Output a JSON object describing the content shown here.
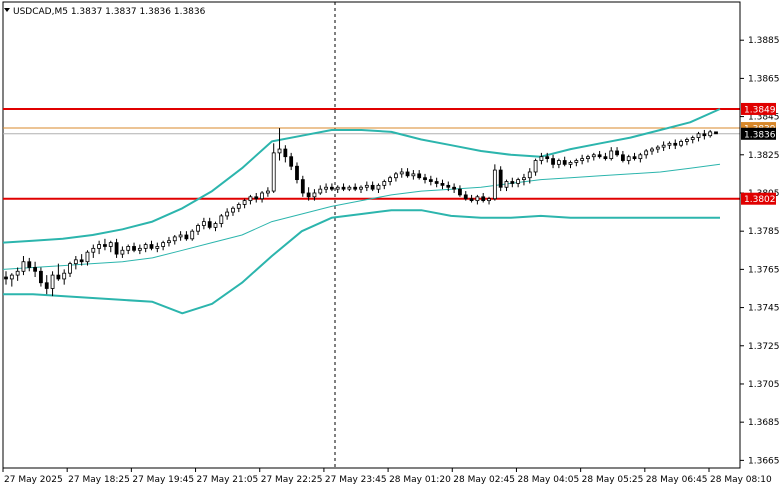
{
  "window": {
    "symbol_line": "USDCAD,M5  1.3837 1.3837 1.3836 1.3836",
    "dropdown_icon": "triangle-down-icon"
  },
  "chart_data": {
    "type": "candlestick",
    "title": "USDCAD,M5  1.3837 1.3837 1.3836 1.3836",
    "ylim": [
      1.3661,
      1.3905
    ],
    "y_ticks": [
      "1.3885",
      "1.3865",
      "1.3845",
      "1.3825",
      "1.3805",
      "1.3785",
      "1.3765",
      "1.3745",
      "1.3725",
      "1.3705",
      "1.3685",
      "1.3665"
    ],
    "y_tick_values": [
      1.3885,
      1.3865,
      1.3845,
      1.3825,
      1.3805,
      1.3785,
      1.3765,
      1.3745,
      1.3725,
      1.3705,
      1.3685,
      1.3665
    ],
    "x_ticks": [
      "27 May 2025",
      "27 May 18:25",
      "27 May 19:45",
      "27 May 21:05",
      "27 May 22:25",
      "27 May 23:45",
      "28 May 01:20",
      "28 May 02:45",
      "28 May 04:05",
      "28 May 05:25",
      "28 May 06:45",
      "28 May 08:10"
    ],
    "candles": [
      [
        1.3761,
        1.3764,
        1.3757,
        1.376
      ],
      [
        1.376,
        1.3763,
        1.3756,
        1.3762
      ],
      [
        1.3762,
        1.3766,
        1.3759,
        1.3764
      ],
      [
        1.3764,
        1.3772,
        1.3762,
        1.3769
      ],
      [
        1.3769,
        1.3771,
        1.3764,
        1.3766
      ],
      [
        1.3766,
        1.3769,
        1.3761,
        1.3764
      ],
      [
        1.3764,
        1.3766,
        1.3756,
        1.3758
      ],
      [
        1.3758,
        1.3762,
        1.3752,
        1.3755
      ],
      [
        1.3755,
        1.3764,
        1.3751,
        1.3762
      ],
      [
        1.3762,
        1.3768,
        1.3759,
        1.376
      ],
      [
        1.376,
        1.3765,
        1.3757,
        1.3763
      ],
      [
        1.3763,
        1.3769,
        1.3761,
        1.3768
      ],
      [
        1.3768,
        1.3772,
        1.3765,
        1.377
      ],
      [
        1.377,
        1.3773,
        1.3767,
        1.3769
      ],
      [
        1.3769,
        1.3775,
        1.3767,
        1.3774
      ],
      [
        1.3774,
        1.3778,
        1.3771,
        1.3776
      ],
      [
        1.3776,
        1.378,
        1.3773,
        1.3778
      ],
      [
        1.3778,
        1.3781,
        1.3775,
        1.3777
      ],
      [
        1.3777,
        1.378,
        1.3774,
        1.3779
      ],
      [
        1.3779,
        1.3781,
        1.3771,
        1.3773
      ],
      [
        1.3773,
        1.3777,
        1.3771,
        1.3775
      ],
      [
        1.3775,
        1.3778,
        1.3773,
        1.3777
      ],
      [
        1.3777,
        1.3779,
        1.3774,
        1.3775
      ],
      [
        1.3775,
        1.3778,
        1.3773,
        1.3776
      ],
      [
        1.3776,
        1.3779,
        1.3774,
        1.3778
      ],
      [
        1.3778,
        1.378,
        1.3775,
        1.3776
      ],
      [
        1.3776,
        1.3779,
        1.3774,
        1.3777
      ],
      [
        1.3777,
        1.378,
        1.3775,
        1.3779
      ],
      [
        1.3779,
        1.3782,
        1.3777,
        1.378
      ],
      [
        1.378,
        1.3783,
        1.3778,
        1.3782
      ],
      [
        1.3782,
        1.3785,
        1.378,
        1.3783
      ],
      [
        1.3783,
        1.3785,
        1.378,
        1.3781
      ],
      [
        1.3781,
        1.3786,
        1.378,
        1.3785
      ],
      [
        1.3785,
        1.3789,
        1.3783,
        1.3788
      ],
      [
        1.3788,
        1.3792,
        1.3786,
        1.379
      ],
      [
        1.379,
        1.3792,
        1.3786,
        1.3787
      ],
      [
        1.3787,
        1.379,
        1.3785,
        1.3789
      ],
      [
        1.3789,
        1.3794,
        1.3787,
        1.3793
      ],
      [
        1.3793,
        1.3797,
        1.3791,
        1.3795
      ],
      [
        1.3795,
        1.3798,
        1.3793,
        1.3797
      ],
      [
        1.3797,
        1.38,
        1.3795,
        1.3799
      ],
      [
        1.3799,
        1.3802,
        1.3797,
        1.3801
      ],
      [
        1.3801,
        1.3804,
        1.3799,
        1.3803
      ],
      [
        1.3803,
        1.3805,
        1.38,
        1.3802
      ],
      [
        1.3802,
        1.3806,
        1.38,
        1.3805
      ],
      [
        1.3805,
        1.3808,
        1.3803,
        1.3806
      ],
      [
        1.3806,
        1.3831,
        1.3805,
        1.3826
      ],
      [
        1.3826,
        1.3839,
        1.3822,
        1.3828
      ],
      [
        1.3828,
        1.383,
        1.3821,
        1.3824
      ],
      [
        1.3824,
        1.3826,
        1.3817,
        1.3819
      ],
      [
        1.3819,
        1.3821,
        1.381,
        1.3812
      ],
      [
        1.3812,
        1.3814,
        1.3803,
        1.3805
      ],
      [
        1.3805,
        1.3808,
        1.3801,
        1.3803
      ],
      [
        1.3803,
        1.3807,
        1.3801,
        1.3805
      ],
      [
        1.3805,
        1.3809,
        1.3804,
        1.3807
      ],
      [
        1.3807,
        1.381,
        1.3805,
        1.3808
      ],
      [
        1.3808,
        1.381,
        1.3806,
        1.3807
      ],
      [
        1.3807,
        1.3809,
        1.3805,
        1.3808
      ],
      [
        1.3808,
        1.381,
        1.3806,
        1.3807
      ],
      [
        1.3807,
        1.3809,
        1.3806,
        1.3808
      ],
      [
        1.3808,
        1.381,
        1.3806,
        1.3807
      ],
      [
        1.3807,
        1.3809,
        1.3805,
        1.3808
      ],
      [
        1.3808,
        1.3811,
        1.3806,
        1.3809
      ],
      [
        1.3809,
        1.3811,
        1.3806,
        1.3807
      ],
      [
        1.3807,
        1.381,
        1.3805,
        1.3809
      ],
      [
        1.3809,
        1.3812,
        1.3807,
        1.3811
      ],
      [
        1.3811,
        1.3814,
        1.3809,
        1.3813
      ],
      [
        1.3813,
        1.3816,
        1.3811,
        1.3815
      ],
      [
        1.3815,
        1.3818,
        1.3813,
        1.3816
      ],
      [
        1.3816,
        1.3818,
        1.3813,
        1.3814
      ],
      [
        1.3814,
        1.3817,
        1.3812,
        1.3815
      ],
      [
        1.3815,
        1.3817,
        1.3812,
        1.3813
      ],
      [
        1.3813,
        1.3815,
        1.381,
        1.3812
      ],
      [
        1.3812,
        1.3814,
        1.3809,
        1.3811
      ],
      [
        1.3811,
        1.3813,
        1.3808,
        1.381
      ],
      [
        1.381,
        1.3812,
        1.3807,
        1.3809
      ],
      [
        1.3809,
        1.3811,
        1.3806,
        1.3808
      ],
      [
        1.3808,
        1.381,
        1.3805,
        1.3807
      ],
      [
        1.3807,
        1.3809,
        1.3803,
        1.3804
      ],
      [
        1.3804,
        1.3806,
        1.3801,
        1.3802
      ],
      [
        1.3802,
        1.3804,
        1.38,
        1.3801
      ],
      [
        1.3801,
        1.3804,
        1.3799,
        1.3803
      ],
      [
        1.3803,
        1.3805,
        1.38,
        1.3801
      ],
      [
        1.3801,
        1.3803,
        1.3799,
        1.3802
      ],
      [
        1.3802,
        1.382,
        1.3801,
        1.3817
      ],
      [
        1.3817,
        1.3819,
        1.3806,
        1.3808
      ],
      [
        1.3808,
        1.3812,
        1.3806,
        1.3811
      ],
      [
        1.3811,
        1.3813,
        1.3808,
        1.381
      ],
      [
        1.381,
        1.3813,
        1.3808,
        1.3812
      ],
      [
        1.3812,
        1.3815,
        1.3809,
        1.3813
      ],
      [
        1.3813,
        1.3818,
        1.381,
        1.3816
      ],
      [
        1.3816,
        1.3823,
        1.3814,
        1.3822
      ],
      [
        1.3822,
        1.3826,
        1.382,
        1.3824
      ],
      [
        1.3824,
        1.3826,
        1.3821,
        1.3823
      ],
      [
        1.3823,
        1.3825,
        1.3818,
        1.382
      ],
      [
        1.382,
        1.3823,
        1.3818,
        1.3822
      ],
      [
        1.3822,
        1.3824,
        1.3819,
        1.382
      ],
      [
        1.382,
        1.3822,
        1.3818,
        1.3821
      ],
      [
        1.3821,
        1.3823,
        1.3819,
        1.3822
      ],
      [
        1.3822,
        1.3825,
        1.382,
        1.3823
      ],
      [
        1.3823,
        1.3825,
        1.3821,
        1.3824
      ],
      [
        1.3824,
        1.3826,
        1.3822,
        1.3825
      ],
      [
        1.3825,
        1.3827,
        1.3823,
        1.3824
      ],
      [
        1.3824,
        1.3826,
        1.3822,
        1.3823
      ],
      [
        1.3823,
        1.3829,
        1.3822,
        1.3827
      ],
      [
        1.3827,
        1.3829,
        1.3824,
        1.3825
      ],
      [
        1.3825,
        1.3827,
        1.3821,
        1.3822
      ],
      [
        1.3822,
        1.3825,
        1.382,
        1.3824
      ],
      [
        1.3824,
        1.3826,
        1.3822,
        1.3823
      ],
      [
        1.3823,
        1.3826,
        1.3821,
        1.3825
      ],
      [
        1.3825,
        1.3828,
        1.3823,
        1.3827
      ],
      [
        1.3827,
        1.3829,
        1.3825,
        1.3828
      ],
      [
        1.3828,
        1.383,
        1.3826,
        1.3829
      ],
      [
        1.3829,
        1.3832,
        1.3827,
        1.383
      ],
      [
        1.383,
        1.3832,
        1.3828,
        1.3831
      ],
      [
        1.3831,
        1.3833,
        1.3828,
        1.383
      ],
      [
        1.383,
        1.3833,
        1.3829,
        1.3832
      ],
      [
        1.3832,
        1.3834,
        1.383,
        1.3833
      ],
      [
        1.3833,
        1.3835,
        1.3831,
        1.3834
      ],
      [
        1.3834,
        1.3837,
        1.3832,
        1.3836
      ],
      [
        1.3836,
        1.3838,
        1.3833,
        1.3835
      ],
      [
        1.3835,
        1.3838,
        1.3834,
        1.3837
      ],
      [
        1.3837,
        1.3837,
        1.3836,
        1.3836
      ]
    ],
    "bollinger_upper": [
      1.3779,
      1.378,
      1.3781,
      1.3783,
      1.3786,
      1.379,
      1.3797,
      1.3806,
      1.3818,
      1.3832,
      1.3835,
      1.3838,
      1.3838,
      1.3837,
      1.3833,
      1.383,
      1.3827,
      1.3825,
      1.3824,
      1.3828,
      1.3831,
      1.3834,
      1.3838,
      1.3842,
      1.3849
    ],
    "bollinger_middle": [
      1.3765,
      1.3766,
      1.3767,
      1.3768,
      1.3769,
      1.3771,
      1.3775,
      1.3779,
      1.3783,
      1.379,
      1.3794,
      1.3798,
      1.3801,
      1.3804,
      1.3806,
      1.3807,
      1.3808,
      1.381,
      1.3812,
      1.3813,
      1.3814,
      1.3815,
      1.3816,
      1.3818,
      1.382
    ],
    "bollinger_lower": [
      1.3752,
      1.3752,
      1.3751,
      1.375,
      1.3749,
      1.3748,
      1.3742,
      1.3747,
      1.3758,
      1.3772,
      1.3785,
      1.3792,
      1.3794,
      1.3796,
      1.3796,
      1.3793,
      1.3792,
      1.3792,
      1.3793,
      1.3792,
      1.3792,
      1.3792,
      1.3792,
      1.3792,
      1.3792
    ],
    "horizontal_levels": [
      {
        "label": "1.3849",
        "value": 1.3849,
        "color": "#e00000",
        "kind": "resistance"
      },
      {
        "label": "1.3802",
        "value": 1.3802,
        "color": "#e00000",
        "kind": "support"
      },
      {
        "label": "1.3839",
        "value": 1.3839,
        "color": "#d8882b",
        "kind": "ask"
      },
      {
        "label": "1.3836",
        "value": 1.3836,
        "color": "#b0b0b0",
        "kind": "bid"
      }
    ],
    "grid": false,
    "colors": {
      "candle": "#000000",
      "bollinger": "#2cb5ad",
      "level": "#e00000",
      "ask": "#d8882b",
      "bid_tag_bg": "#000000",
      "bid_tag_text": "#ffffff"
    }
  }
}
